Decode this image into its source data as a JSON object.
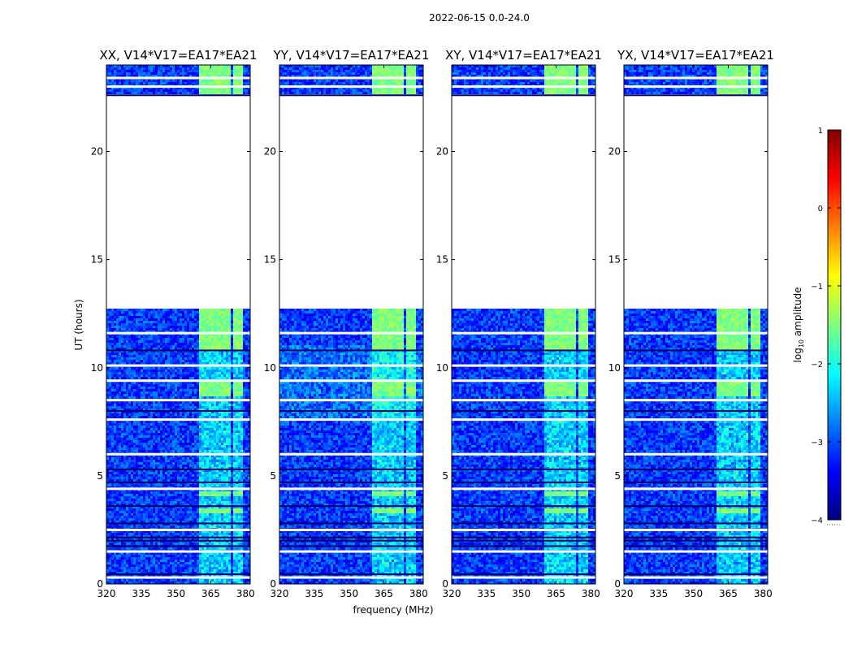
{
  "chart_data": [
    {
      "type": "heatmap",
      "title": "XX, V14*V17=EA17*EA21",
      "figure_title": "2022-06-15 0.0-24.0",
      "xlabel": "frequency (MHz)",
      "ylabel": "UT (hours)",
      "xlim": [
        320,
        382
      ],
      "ylim": [
        0,
        24
      ],
      "x_ticks": [
        320,
        335,
        350,
        365,
        380
      ],
      "y_ticks": [
        0,
        5,
        10,
        15,
        20
      ],
      "missing_ut_range_hours": [
        12.7,
        22.6
      ],
      "blank_ut_rows_hours": [
        0.3,
        1.5,
        2.5,
        4.4,
        6.0,
        7.6,
        8.5,
        9.4,
        10.1,
        11.6,
        23.0,
        23.4
      ],
      "rfi_frequency_bands_mhz": [
        [
          360,
          365
        ],
        [
          365,
          369
        ],
        [
          369.5,
          374
        ],
        [
          375,
          379
        ]
      ],
      "color_scale": "log10 amplitude",
      "zlim": [
        -4,
        1
      ]
    },
    {
      "type": "heatmap",
      "title": "YY, V14*V17=EA17*EA21",
      "figure_title": "2022-06-15 0.0-24.0",
      "xlabel": "frequency (MHz)",
      "ylabel": "UT (hours)",
      "xlim": [
        320,
        382
      ],
      "ylim": [
        0,
        24
      ],
      "x_ticks": [
        320,
        335,
        350,
        365,
        380
      ],
      "y_ticks": [
        0,
        5,
        10,
        15,
        20
      ],
      "missing_ut_range_hours": [
        12.7,
        22.6
      ],
      "blank_ut_rows_hours": [
        0.3,
        1.5,
        2.5,
        4.4,
        6.0,
        7.6,
        8.5,
        9.4,
        10.1,
        11.6,
        23.0,
        23.4
      ],
      "rfi_frequency_bands_mhz": [
        [
          360,
          365
        ],
        [
          365,
          369
        ],
        [
          369.5,
          374
        ],
        [
          375,
          379
        ]
      ],
      "color_scale": "log10 amplitude",
      "zlim": [
        -4,
        1
      ]
    },
    {
      "type": "heatmap",
      "title": "XY, V14*V17=EA17*EA21",
      "figure_title": "2022-06-15 0.0-24.0",
      "xlabel": "frequency (MHz)",
      "ylabel": "UT (hours)",
      "xlim": [
        320,
        382
      ],
      "ylim": [
        0,
        24
      ],
      "x_ticks": [
        320,
        335,
        350,
        365,
        380
      ],
      "y_ticks": [
        0,
        5,
        10,
        15,
        20
      ],
      "missing_ut_range_hours": [
        12.7,
        22.6
      ],
      "blank_ut_rows_hours": [
        0.3,
        1.5,
        2.5,
        4.4,
        6.0,
        7.6,
        8.5,
        9.4,
        10.1,
        11.6,
        23.0,
        23.4
      ],
      "rfi_frequency_bands_mhz": [
        [
          360,
          365
        ],
        [
          365,
          369
        ],
        [
          369.5,
          374
        ],
        [
          375,
          379
        ]
      ],
      "color_scale": "log10 amplitude",
      "zlim": [
        -4,
        1
      ]
    },
    {
      "type": "heatmap",
      "title": "YX, V14*V17=EA17*EA21",
      "figure_title": "2022-06-15 0.0-24.0",
      "xlabel": "frequency (MHz)",
      "ylabel": "UT (hours)",
      "xlim": [
        320,
        382
      ],
      "ylim": [
        0,
        24
      ],
      "x_ticks": [
        320,
        335,
        350,
        365,
        380
      ],
      "y_ticks": [
        0,
        5,
        10,
        15,
        20
      ],
      "missing_ut_range_hours": [
        12.7,
        22.6
      ],
      "blank_ut_rows_hours": [
        0.3,
        1.5,
        2.5,
        4.4,
        6.0,
        7.6,
        8.5,
        9.4,
        10.1,
        11.6,
        23.0,
        23.4
      ],
      "rfi_frequency_bands_mhz": [
        [
          360,
          365
        ],
        [
          365,
          369
        ],
        [
          369.5,
          374
        ],
        [
          375,
          379
        ]
      ],
      "color_scale": "log10 amplitude",
      "zlim": [
        -4,
        1
      ]
    }
  ],
  "figure": {
    "title": "2022-06-15 0.0-24.0",
    "xlabel": "frequency (MHz)",
    "ylabel": "UT (hours)"
  },
  "colorbar": {
    "label": "log",
    "label_sub": "10",
    "label_rest": " amplitude",
    "ticks": [
      1,
      0,
      -1,
      -2,
      -3,
      -4
    ],
    "tick_labels": [
      "1",
      "0",
      "−1",
      "−2",
      "−3",
      "−4"
    ],
    "vmin": -4,
    "vmax": 1,
    "colors": [
      "#00007f",
      "#0000ff",
      "#007fff",
      "#00ffff",
      "#7fff7f",
      "#ffff00",
      "#ff7f00",
      "#ff0000",
      "#7f0000"
    ]
  }
}
